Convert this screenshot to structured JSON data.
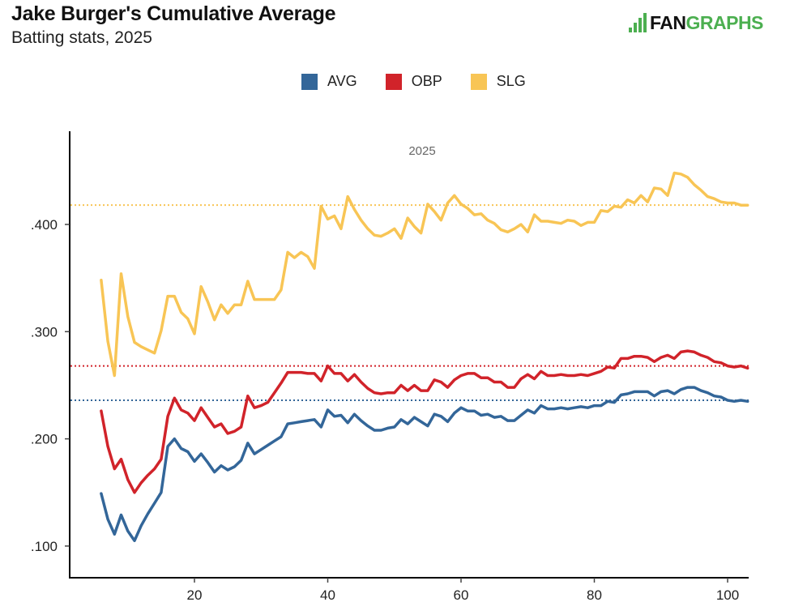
{
  "header": {
    "title": "Jake Burger's Cumulative Average",
    "subtitle": "Batting stats, 2025",
    "logo_text_dark": "FAN",
    "logo_text_green": "GRAPHS"
  },
  "colors": {
    "AVG": "#336699",
    "OBP": "#d1232a",
    "SLG": "#f8c555",
    "logo_green": "#4caf50"
  },
  "chart_data": {
    "type": "line",
    "title": "Jake Burger's Cumulative Average",
    "subtitle": "Batting stats, 2025",
    "annotation": "2025",
    "xlabel": "",
    "ylabel": "",
    "xlim": [
      3,
      104
    ],
    "ylim": [
      0.075,
      0.485
    ],
    "x_ticks": [
      20,
      40,
      60,
      80,
      100
    ],
    "x_tick_labels": [
      "20",
      "40",
      "60",
      "80",
      "100"
    ],
    "y_ticks": [
      0.1,
      0.2,
      0.3,
      0.4
    ],
    "y_tick_labels": [
      ".100",
      ".200",
      ".300",
      ".400"
    ],
    "grid": false,
    "legend": [
      "AVG",
      "OBP",
      "SLG"
    ],
    "legend_position": "top-center",
    "x_start": 6,
    "reference_lines": [
      {
        "name": "SLG",
        "value": 0.418
      },
      {
        "name": "OBP",
        "value": 0.268
      },
      {
        "name": "AVG",
        "value": 0.236
      }
    ],
    "series": [
      {
        "name": "AVG",
        "values": [
          0.149,
          0.125,
          0.111,
          0.129,
          0.114,
          0.105,
          0.119,
          0.13,
          0.14,
          0.15,
          0.193,
          0.2,
          0.191,
          0.188,
          0.179,
          0.186,
          0.178,
          0.169,
          0.175,
          0.171,
          0.174,
          0.18,
          0.196,
          0.186,
          0.19,
          0.194,
          0.198,
          0.202,
          0.214,
          0.215,
          0.216,
          0.217,
          0.218,
          0.211,
          0.227,
          0.221,
          0.222,
          0.215,
          0.223,
          0.217,
          0.212,
          0.208,
          0.208,
          0.21,
          0.211,
          0.218,
          0.214,
          0.22,
          0.216,
          0.212,
          0.223,
          0.221,
          0.216,
          0.224,
          0.229,
          0.226,
          0.226,
          0.222,
          0.223,
          0.22,
          0.221,
          0.217,
          0.217,
          0.222,
          0.227,
          0.224,
          0.231,
          0.228,
          0.228,
          0.229,
          0.228,
          0.229,
          0.23,
          0.229,
          0.231,
          0.231,
          0.235,
          0.234,
          0.241,
          0.242,
          0.244,
          0.244,
          0.244,
          0.24,
          0.244,
          0.245,
          0.242,
          0.246,
          0.248,
          0.248,
          0.245,
          0.243,
          0.24,
          0.239,
          0.236,
          0.235,
          0.236,
          0.235
        ]
      },
      {
        "name": "OBP",
        "values": [
          0.226,
          0.193,
          0.172,
          0.181,
          0.162,
          0.15,
          0.159,
          0.166,
          0.172,
          0.181,
          0.221,
          0.238,
          0.227,
          0.224,
          0.217,
          0.229,
          0.22,
          0.211,
          0.214,
          0.205,
          0.207,
          0.211,
          0.24,
          0.229,
          0.231,
          0.234,
          0.243,
          0.252,
          0.262,
          0.262,
          0.262,
          0.261,
          0.261,
          0.254,
          0.268,
          0.261,
          0.261,
          0.254,
          0.26,
          0.253,
          0.247,
          0.243,
          0.242,
          0.243,
          0.243,
          0.25,
          0.245,
          0.25,
          0.245,
          0.245,
          0.255,
          0.253,
          0.248,
          0.255,
          0.259,
          0.261,
          0.261,
          0.257,
          0.257,
          0.253,
          0.253,
          0.248,
          0.248,
          0.256,
          0.26,
          0.256,
          0.263,
          0.259,
          0.259,
          0.26,
          0.259,
          0.259,
          0.26,
          0.259,
          0.261,
          0.263,
          0.267,
          0.266,
          0.275,
          0.275,
          0.277,
          0.277,
          0.276,
          0.272,
          0.276,
          0.278,
          0.275,
          0.281,
          0.282,
          0.281,
          0.278,
          0.276,
          0.272,
          0.271,
          0.268,
          0.267,
          0.268,
          0.266
        ]
      },
      {
        "name": "SLG",
        "values": [
          0.348,
          0.291,
          0.259,
          0.354,
          0.314,
          0.29,
          0.286,
          0.283,
          0.28,
          0.301,
          0.333,
          0.333,
          0.318,
          0.312,
          0.298,
          0.342,
          0.328,
          0.311,
          0.325,
          0.317,
          0.325,
          0.325,
          0.347,
          0.33,
          0.33,
          0.33,
          0.33,
          0.339,
          0.374,
          0.369,
          0.374,
          0.37,
          0.359,
          0.417,
          0.405,
          0.408,
          0.396,
          0.426,
          0.414,
          0.404,
          0.396,
          0.39,
          0.389,
          0.392,
          0.396,
          0.387,
          0.406,
          0.398,
          0.392,
          0.419,
          0.412,
          0.404,
          0.42,
          0.427,
          0.419,
          0.415,
          0.409,
          0.41,
          0.404,
          0.401,
          0.395,
          0.393,
          0.396,
          0.4,
          0.393,
          0.409,
          0.403,
          0.403,
          0.402,
          0.401,
          0.404,
          0.403,
          0.399,
          0.402,
          0.402,
          0.413,
          0.412,
          0.417,
          0.416,
          0.423,
          0.42,
          0.427,
          0.421,
          0.434,
          0.433,
          0.427,
          0.448,
          0.447,
          0.444,
          0.437,
          0.432,
          0.426,
          0.424,
          0.421,
          0.42,
          0.42,
          0.418,
          0.418
        ]
      }
    ]
  }
}
